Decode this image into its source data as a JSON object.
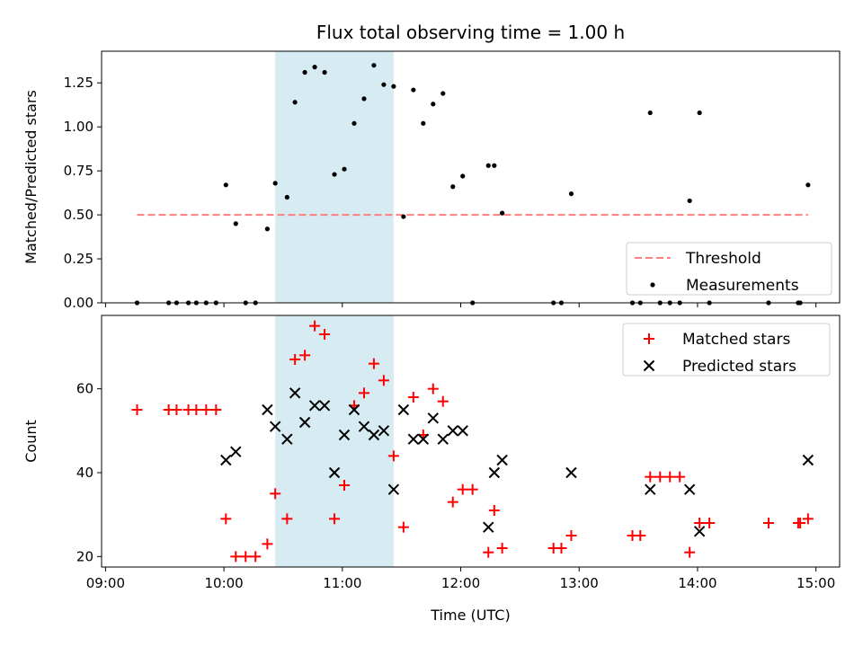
{
  "chart_data": [
    {
      "type": "scatter",
      "title": "Flux total observing time = 1.00 h",
      "xlabel": "",
      "ylabel": "Matched/Predicted stars",
      "xlim": [
        "08:58",
        "15:12"
      ],
      "ylim": [
        0,
        1.43
      ],
      "yticks": [
        0.0,
        0.25,
        0.5,
        0.75,
        1.0,
        1.25
      ],
      "ytick_labels": [
        "0.00",
        "0.25",
        "0.50",
        "0.75",
        "1.00",
        "1.25"
      ],
      "highlight_span": {
        "start": "10:26",
        "end": "11:26",
        "color": "#add8e6"
      },
      "threshold": {
        "name": "Threshold",
        "value": 0.5,
        "from": "09:16",
        "to": "14:56",
        "color": "#ff7f7f",
        "style": "dashed"
      },
      "legend": {
        "position": "lower right",
        "entries": [
          "Threshold",
          "Measurements"
        ]
      },
      "series": [
        {
          "name": "Measurements",
          "color": "#000000",
          "marker": "dot",
          "points": [
            [
              "09:16",
              0.0
            ],
            [
              "09:32",
              0.0
            ],
            [
              "09:36",
              0.0
            ],
            [
              "09:42",
              0.0
            ],
            [
              "09:46",
              0.0
            ],
            [
              "09:51",
              0.0
            ],
            [
              "09:56",
              0.0
            ],
            [
              "10:01",
              0.67
            ],
            [
              "10:06",
              0.45
            ],
            [
              "10:11",
              0.0
            ],
            [
              "10:16",
              0.0
            ],
            [
              "10:22",
              0.42
            ],
            [
              "10:26",
              0.68
            ],
            [
              "10:32",
              0.6
            ],
            [
              "10:36",
              1.14
            ],
            [
              "10:41",
              1.31
            ],
            [
              "10:46",
              1.34
            ],
            [
              "10:51",
              1.31
            ],
            [
              "10:56",
              0.73
            ],
            [
              "11:01",
              0.76
            ],
            [
              "11:06",
              1.02
            ],
            [
              "11:11",
              1.16
            ],
            [
              "11:16",
              1.35
            ],
            [
              "11:21",
              1.24
            ],
            [
              "11:26",
              1.23
            ],
            [
              "11:31",
              0.49
            ],
            [
              "11:36",
              1.21
            ],
            [
              "11:41",
              1.02
            ],
            [
              "11:46",
              1.13
            ],
            [
              "11:51",
              1.19
            ],
            [
              "11:56",
              0.66
            ],
            [
              "12:01",
              0.72
            ],
            [
              "12:06",
              0.0
            ],
            [
              "12:14",
              0.78
            ],
            [
              "12:17",
              0.78
            ],
            [
              "12:21",
              0.51
            ],
            [
              "12:47",
              0.0
            ],
            [
              "12:51",
              0.0
            ],
            [
              "12:56",
              0.62
            ],
            [
              "13:27",
              0.0
            ],
            [
              "13:31",
              0.0
            ],
            [
              "13:36",
              1.08
            ],
            [
              "13:41",
              0.0
            ],
            [
              "13:46",
              0.0
            ],
            [
              "13:51",
              0.0
            ],
            [
              "13:56",
              0.58
            ],
            [
              "14:01",
              1.08
            ],
            [
              "14:06",
              0.0
            ],
            [
              "14:36",
              0.0
            ],
            [
              "14:51",
              0.0
            ],
            [
              "14:52",
              0.0
            ],
            [
              "14:56",
              0.67
            ]
          ]
        }
      ]
    },
    {
      "type": "scatter",
      "title": "",
      "xlabel": "Time (UTC)",
      "ylabel": "Count",
      "xlim": [
        "08:58",
        "15:12"
      ],
      "ylim": [
        17.5,
        77.5
      ],
      "xticks": [
        "09:00",
        "10:00",
        "11:00",
        "12:00",
        "13:00",
        "14:00",
        "15:00"
      ],
      "yticks": [
        20,
        40,
        60
      ],
      "ytick_labels": [
        "20",
        "40",
        "60"
      ],
      "highlight_span": {
        "start": "10:26",
        "end": "11:26",
        "color": "#add8e6"
      },
      "legend": {
        "position": "upper right",
        "entries": [
          "Matched stars",
          "Predicted stars"
        ]
      },
      "series": [
        {
          "name": "Matched stars",
          "color": "#ff0000",
          "marker": "plus",
          "points": [
            [
              "09:16",
              55
            ],
            [
              "09:32",
              55
            ],
            [
              "09:36",
              55
            ],
            [
              "09:42",
              55
            ],
            [
              "09:46",
              55
            ],
            [
              "09:51",
              55
            ],
            [
              "09:56",
              55
            ],
            [
              "10:01",
              29
            ],
            [
              "10:06",
              20
            ],
            [
              "10:11",
              20
            ],
            [
              "10:16",
              20
            ],
            [
              "10:22",
              23
            ],
            [
              "10:26",
              35
            ],
            [
              "10:32",
              29
            ],
            [
              "10:36",
              67
            ],
            [
              "10:41",
              68
            ],
            [
              "10:46",
              75
            ],
            [
              "10:51",
              73
            ],
            [
              "10:56",
              29
            ],
            [
              "11:01",
              37
            ],
            [
              "11:06",
              56
            ],
            [
              "11:11",
              59
            ],
            [
              "11:16",
              66
            ],
            [
              "11:21",
              62
            ],
            [
              "11:26",
              44
            ],
            [
              "11:31",
              27
            ],
            [
              "11:36",
              58
            ],
            [
              "11:41",
              49
            ],
            [
              "11:46",
              60
            ],
            [
              "11:51",
              57
            ],
            [
              "11:56",
              33
            ],
            [
              "12:01",
              36
            ],
            [
              "12:06",
              36
            ],
            [
              "12:14",
              21
            ],
            [
              "12:17",
              31
            ],
            [
              "12:21",
              22
            ],
            [
              "12:47",
              22
            ],
            [
              "12:51",
              22
            ],
            [
              "12:56",
              25
            ],
            [
              "13:27",
              25
            ],
            [
              "13:31",
              25
            ],
            [
              "13:36",
              39
            ],
            [
              "13:41",
              39
            ],
            [
              "13:46",
              39
            ],
            [
              "13:51",
              39
            ],
            [
              "13:56",
              21
            ],
            [
              "14:01",
              28
            ],
            [
              "14:06",
              28
            ],
            [
              "14:36",
              28
            ],
            [
              "14:51",
              28
            ],
            [
              "14:52",
              28
            ],
            [
              "14:56",
              29
            ]
          ]
        },
        {
          "name": "Predicted stars",
          "color": "#000000",
          "marker": "x",
          "points": [
            [
              "10:01",
              43
            ],
            [
              "10:06",
              45
            ],
            [
              "10:22",
              55
            ],
            [
              "10:26",
              51
            ],
            [
              "10:32",
              48
            ],
            [
              "10:36",
              59
            ],
            [
              "10:41",
              52
            ],
            [
              "10:46",
              56
            ],
            [
              "10:51",
              56
            ],
            [
              "10:56",
              40
            ],
            [
              "11:01",
              49
            ],
            [
              "11:06",
              55
            ],
            [
              "11:11",
              51
            ],
            [
              "11:16",
              49
            ],
            [
              "11:21",
              50
            ],
            [
              "11:26",
              36
            ],
            [
              "11:31",
              55
            ],
            [
              "11:36",
              48
            ],
            [
              "11:41",
              48
            ],
            [
              "11:46",
              53
            ],
            [
              "11:51",
              48
            ],
            [
              "11:56",
              50
            ],
            [
              "12:01",
              50
            ],
            [
              "12:14",
              27
            ],
            [
              "12:17",
              40
            ],
            [
              "12:21",
              43
            ],
            [
              "12:56",
              40
            ],
            [
              "13:36",
              36
            ],
            [
              "13:56",
              36
            ],
            [
              "14:01",
              26
            ],
            [
              "14:56",
              43
            ]
          ]
        }
      ]
    }
  ]
}
